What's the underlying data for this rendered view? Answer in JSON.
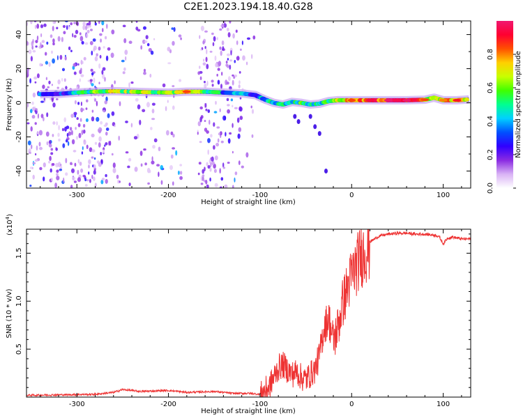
{
  "figure": {
    "title": "C2E1.2023.194.18.40.G28"
  },
  "chart_data": [
    {
      "type": "heatmap",
      "panel": "spectrogram",
      "xlabel": "Height of straight line (km)",
      "ylabel": "Frequency (Hz)",
      "xlim": [
        -355,
        130
      ],
      "ylim": [
        -50,
        48
      ],
      "xticks": [
        -300,
        -200,
        -100,
        0,
        100
      ],
      "yticks": [
        -40,
        -20,
        0,
        20,
        40
      ],
      "colorbar": {
        "label": "Normalized spectral amplitude",
        "range": [
          0,
          1
        ],
        "ticks": [
          0.0,
          0.2,
          0.4,
          0.6,
          0.8
        ],
        "colors": [
          "#ffffff",
          "#d9b3f5",
          "#8a2be2",
          "#3000ff",
          "#0050ff",
          "#00d0ff",
          "#00ff90",
          "#40ff00",
          "#c8ff00",
          "#ffd000",
          "#ff5000",
          "#ff0030",
          "#f01870"
        ]
      },
      "ridge": [
        {
          "x": -340,
          "y": 5.0,
          "a": 0.35
        },
        {
          "x": -320,
          "y": 5.2,
          "a": 0.3
        },
        {
          "x": -300,
          "y": 6.0,
          "a": 0.4
        },
        {
          "x": -280,
          "y": 6.5,
          "a": 0.55
        },
        {
          "x": -260,
          "y": 6.8,
          "a": 0.65
        },
        {
          "x": -240,
          "y": 6.5,
          "a": 0.6
        },
        {
          "x": -220,
          "y": 6.2,
          "a": 0.6
        },
        {
          "x": -200,
          "y": 6.0,
          "a": 0.6
        },
        {
          "x": -180,
          "y": 6.5,
          "a": 0.75
        },
        {
          "x": -160,
          "y": 6.5,
          "a": 0.55
        },
        {
          "x": -140,
          "y": 6.0,
          "a": 0.4
        },
        {
          "x": -120,
          "y": 5.5,
          "a": 0.35
        },
        {
          "x": -105,
          "y": 4.5,
          "a": 0.35
        },
        {
          "x": -95,
          "y": 2.0,
          "a": 0.4
        },
        {
          "x": -85,
          "y": 0.0,
          "a": 0.45
        },
        {
          "x": -75,
          "y": -1.0,
          "a": 0.45
        },
        {
          "x": -65,
          "y": 0.5,
          "a": 0.45
        },
        {
          "x": -55,
          "y": 0.0,
          "a": 0.5
        },
        {
          "x": -45,
          "y": -1.0,
          "a": 0.45
        },
        {
          "x": -35,
          "y": -0.5,
          "a": 0.45
        },
        {
          "x": -25,
          "y": 1.0,
          "a": 0.55
        },
        {
          "x": -15,
          "y": 1.5,
          "a": 0.65
        },
        {
          "x": 0,
          "y": 1.5,
          "a": 0.75
        },
        {
          "x": 20,
          "y": 1.5,
          "a": 0.85
        },
        {
          "x": 40,
          "y": 1.5,
          "a": 0.9
        },
        {
          "x": 60,
          "y": 1.5,
          "a": 0.9
        },
        {
          "x": 80,
          "y": 1.8,
          "a": 0.75
        },
        {
          "x": 90,
          "y": 3.0,
          "a": 0.55
        },
        {
          "x": 100,
          "y": 1.5,
          "a": 0.7
        },
        {
          "x": 115,
          "y": 1.5,
          "a": 0.8
        },
        {
          "x": 128,
          "y": 2.0,
          "a": 0.55
        }
      ],
      "side_branch": [
        {
          "x": -62,
          "y": -8
        },
        {
          "x": -58,
          "y": -11
        },
        {
          "x": -45,
          "y": -8
        },
        {
          "x": -40,
          "y": -14
        },
        {
          "x": -35,
          "y": -18
        },
        {
          "x": -28,
          "y": -40
        }
      ],
      "noise_bands": [
        {
          "x": [
            -355,
            -265
          ],
          "density": 0.7
        },
        {
          "x": [
            -265,
            -215
          ],
          "density": 0.25
        },
        {
          "x": [
            -215,
            -185
          ],
          "density": 0.2
        },
        {
          "x": [
            -168,
            -120
          ],
          "density": 0.6
        },
        {
          "x": [
            -120,
            -105
          ],
          "density": 0.15
        }
      ]
    },
    {
      "type": "line",
      "panel": "snr",
      "xlabel": "Height of straight line (km)",
      "ylabel": "SNR (10 * v/v)",
      "y_multiplier_label": "(x10",
      "y_multiplier_exponent": "4",
      "xlim": [
        -355,
        130
      ],
      "ylim": [
        0,
        1.75
      ],
      "xticks": [
        -300,
        -200,
        -100,
        0,
        100
      ],
      "yticks": [
        0.5,
        1.0,
        1.5
      ],
      "ytick_labels": [
        "0.5",
        "1.0",
        "1.5"
      ],
      "series": [
        {
          "color": "#ee3333",
          "x": [
            -355,
            -280,
            -260,
            -250,
            -230,
            -200,
            -180,
            -150,
            -130,
            -110,
            -100,
            -95,
            -90,
            -85,
            -80,
            -75,
            -70,
            -65,
            -60,
            -55,
            -50,
            -45,
            -40,
            -35,
            -30,
            -25,
            -20,
            -15,
            -10,
            -5,
            0,
            5,
            10,
            15,
            20,
            25,
            30,
            40,
            50,
            60,
            70,
            80,
            90,
            95,
            100,
            105,
            110,
            120,
            130
          ],
          "y": [
            0.02,
            0.03,
            0.05,
            0.08,
            0.06,
            0.07,
            0.05,
            0.06,
            0.04,
            0.04,
            0.03,
            0.08,
            0.12,
            0.22,
            0.32,
            0.35,
            0.3,
            0.25,
            0.28,
            0.22,
            0.2,
            0.25,
            0.3,
            0.45,
            0.75,
            0.85,
            0.6,
            0.75,
            1.0,
            1.15,
            1.3,
            1.4,
            1.5,
            1.57,
            1.62,
            1.65,
            1.68,
            1.7,
            1.71,
            1.71,
            1.7,
            1.7,
            1.69,
            1.68,
            1.6,
            1.66,
            1.67,
            1.65,
            1.65
          ]
        }
      ]
    }
  ]
}
